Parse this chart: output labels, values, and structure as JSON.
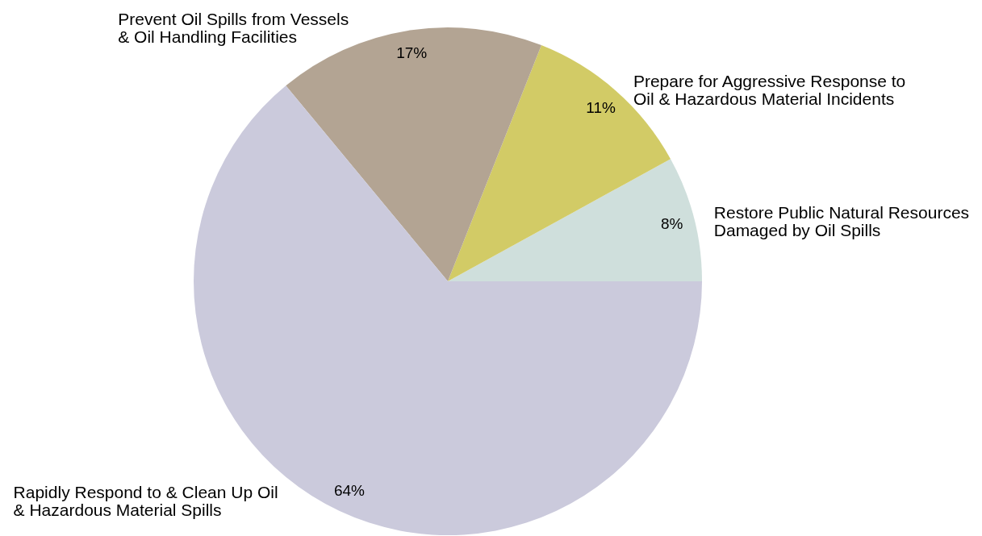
{
  "chart_data": {
    "type": "pie",
    "categories": [
      "Restore Public Natural Resources\nDamaged by Oil Spills",
      "Prepare for Aggressive Response to\nOil & Hazardous Material Incidents",
      "Prevent Oil Spills from Vessels\n& Oil Handling Facilities",
      "Rapidly Respond to & Clean Up Oil\n& Hazardous Material Spills"
    ],
    "values": [
      8,
      11,
      17,
      64
    ],
    "colors": [
      "#cfdfdc",
      "#d2cb66",
      "#b3a493",
      "#cbcadc"
    ],
    "value_labels": [
      "8%",
      "11%",
      "17%",
      "64%"
    ]
  }
}
